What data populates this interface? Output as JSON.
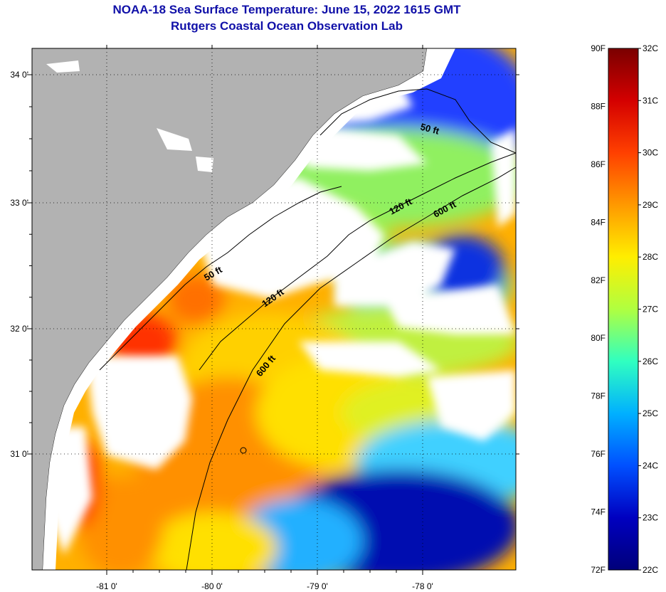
{
  "header": {
    "title": "NOAA-18 Sea Surface Temperature:  June 15, 2022 1615 GMT",
    "subtitle": "Rutgers Coastal Ocean Observation Lab"
  },
  "axes": {
    "x_ticks": [
      {
        "value": -81,
        "label": "-81 0'"
      },
      {
        "value": -80,
        "label": "-80 0'"
      },
      {
        "value": -79,
        "label": "-79 0'"
      },
      {
        "value": -78,
        "label": "-78 0'"
      }
    ],
    "y_ticks": [
      {
        "value": 34,
        "label": "34 0'"
      },
      {
        "value": 33,
        "label": "33 0'"
      },
      {
        "value": 32,
        "label": "32 0'"
      },
      {
        "value": 31,
        "label": "31 0'"
      }
    ],
    "lon_range": [
      -81.65,
      -77.1
    ],
    "lat_range": [
      30.2,
      34.2
    ],
    "grid": "dotted"
  },
  "contours": [
    {
      "label": "50 ft"
    },
    {
      "label": "50 ft"
    },
    {
      "label": "120 ft"
    },
    {
      "label": "120 ft"
    },
    {
      "label": "600 ft"
    },
    {
      "label": "600 ft"
    }
  ],
  "colorbar": {
    "f_labels": [
      "90F",
      "88F",
      "86F",
      "84F",
      "82F",
      "80F",
      "78F",
      "76F",
      "74F",
      "72F"
    ],
    "c_labels": [
      "32C",
      "31C",
      "30C",
      "29C",
      "28C",
      "27C",
      "26C",
      "25C",
      "24C",
      "23C",
      "22C"
    ],
    "f_range": [
      72,
      90
    ],
    "c_range": [
      22,
      32
    ],
    "colors": [
      "#7a0000",
      "#d40000",
      "#ff4000",
      "#ff9900",
      "#ffee00",
      "#b0ff40",
      "#30ffc0",
      "#00b0ff",
      "#0050ff",
      "#0000c0",
      "#00007a"
    ]
  },
  "colors": {
    "land": "#b2b2b2",
    "cloud": "#ffffff",
    "title": "#1010a8"
  }
}
